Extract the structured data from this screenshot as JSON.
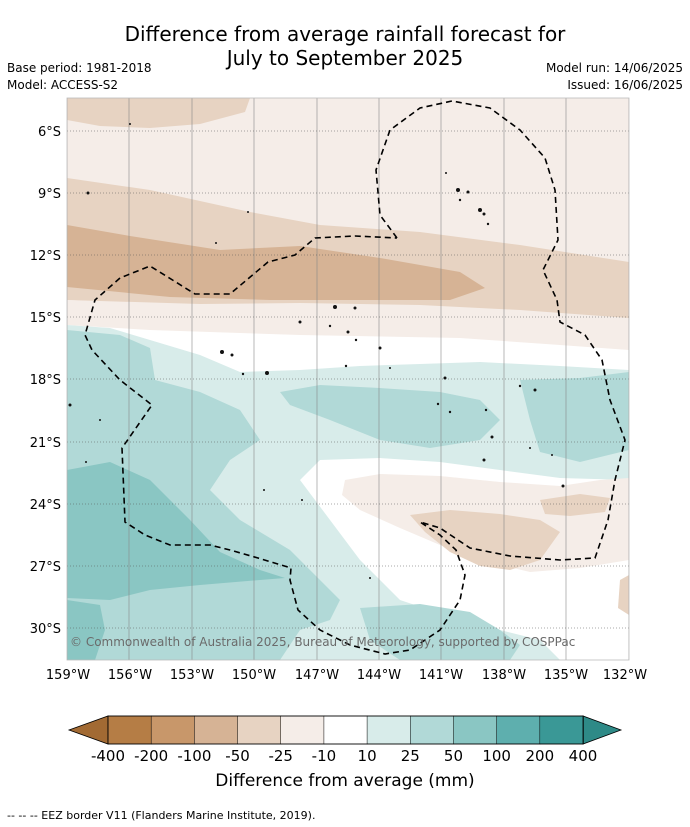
{
  "title_line1": "Difference from average rainfall forecast for",
  "title_line2": "July to September 2025",
  "base_period": "Base period: 1981-2018",
  "model": "Model: ACCESS-S2",
  "model_run": "Model run: 14/06/2025",
  "issued": "Issued: 16/06/2025",
  "copyright": "© Commonwealth of Australia 2025, Bureau of Meteorology, supported by COSPPac",
  "lat_labels": [
    "6°S",
    "9°S",
    "12°S",
    "15°S",
    "18°S",
    "21°S",
    "24°S",
    "27°S",
    "30°S"
  ],
  "lon_labels": [
    "159°W",
    "156°W",
    "153°W",
    "150°W",
    "147°W",
    "144°W",
    "141°W",
    "138°W",
    "135°W",
    "132°W"
  ],
  "colorbar": {
    "ticks": [
      "-400",
      "-200",
      "-100",
      "-50",
      "-25",
      "-10",
      "10",
      "25",
      "50",
      "100",
      "200",
      "400"
    ],
    "colors": [
      "#a26a33",
      "#b57d45",
      "#c8976a",
      "#d6b395",
      "#e7d3c2",
      "#f5ede8",
      "#ffffff",
      "#d8ecea",
      "#b1d9d7",
      "#8ac6c3",
      "#5eafae",
      "#3a9896",
      "#2e8a87"
    ],
    "title": "Difference from average (mm)"
  },
  "legend_text": "--  --  -- EEZ border V11 (Flanders Marine Institute, 2019)."
}
